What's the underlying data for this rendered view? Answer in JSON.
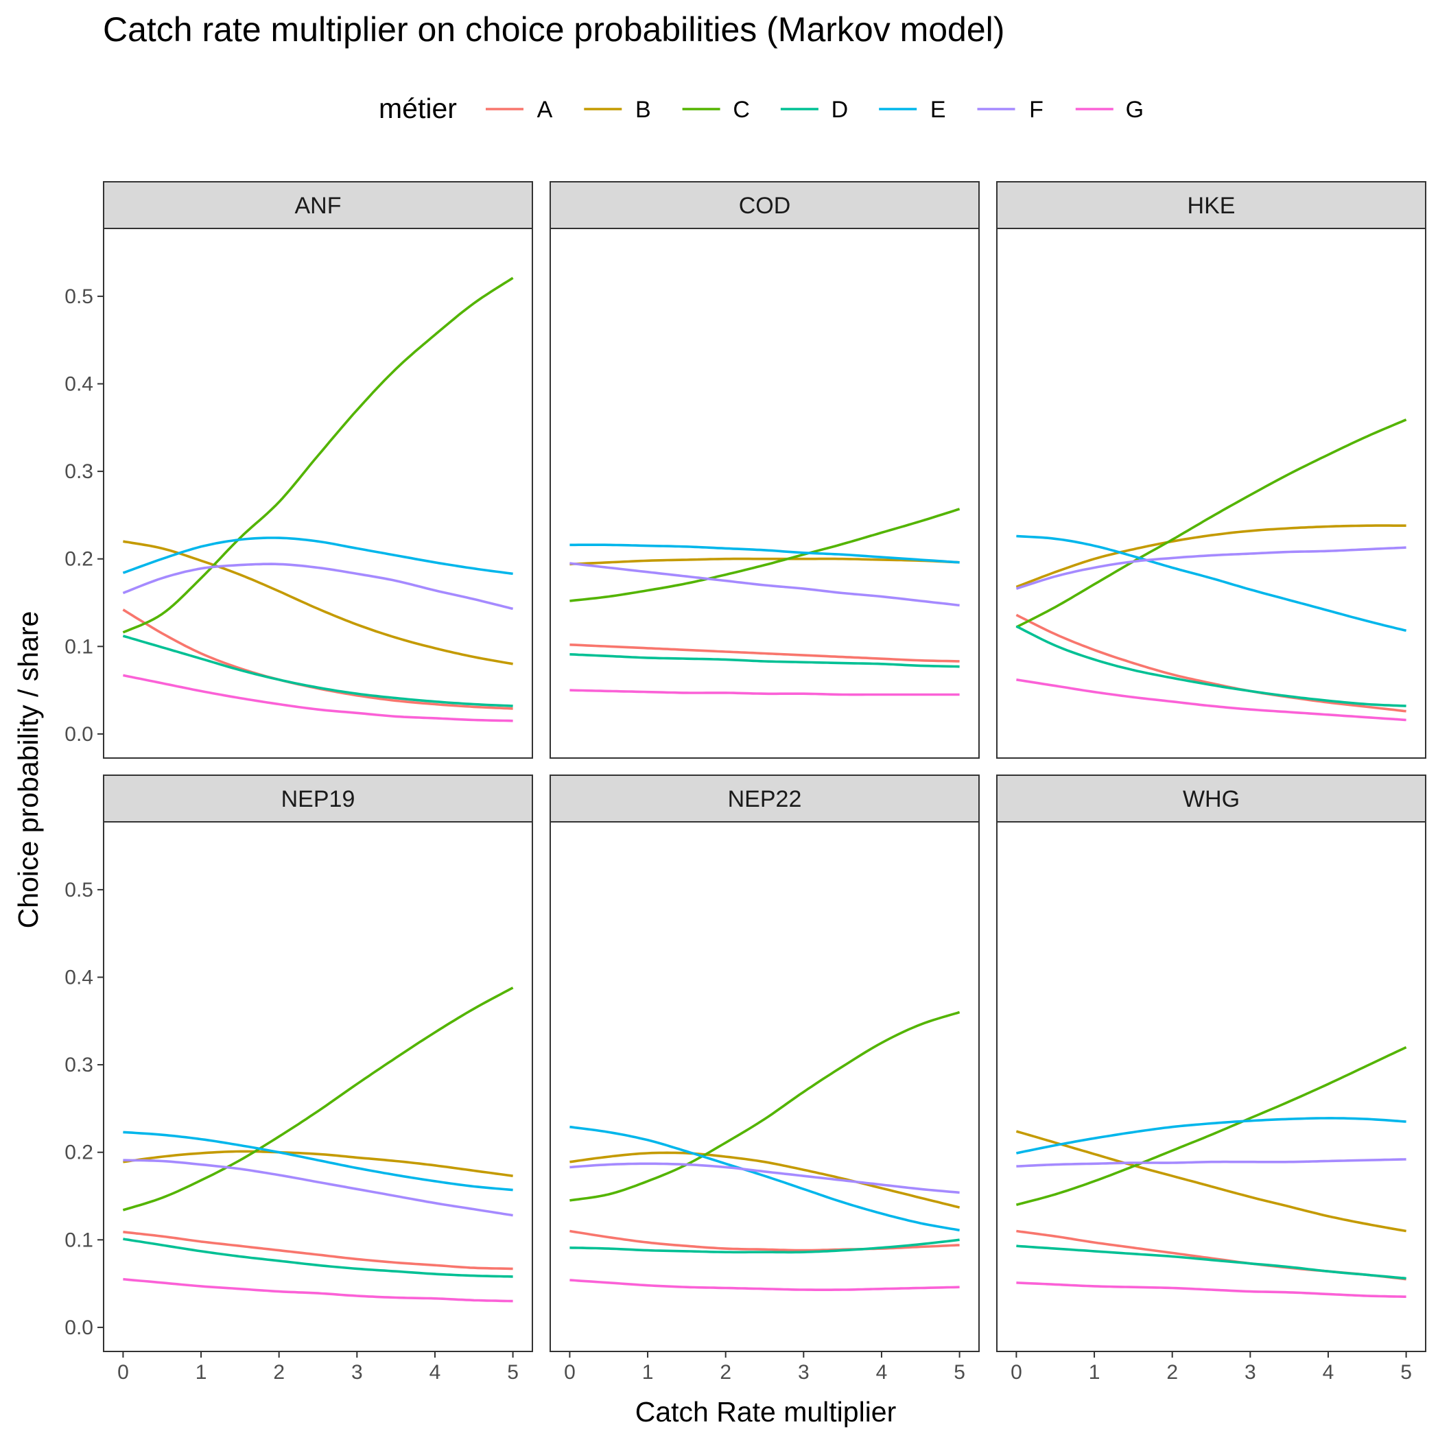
{
  "colors": {
    "A": "#F8766D",
    "B": "#C49A00",
    "C": "#53B400",
    "D": "#00C094",
    "E": "#00B6EB",
    "F": "#A58AFF",
    "G": "#FB61D7"
  },
  "chart_data": {
    "type": "line",
    "title": "Catch rate multiplier on choice probabilities (Markov model)",
    "xlabel": "Catch Rate multiplier",
    "ylabel": "Choice probability / share",
    "xlim": [
      0,
      5
    ],
    "ylim": [
      0,
      0.55
    ],
    "x_ticks": [
      "0",
      "1",
      "2",
      "3",
      "4",
      "5"
    ],
    "y_ticks": [
      "0.0",
      "0.1",
      "0.2",
      "0.3",
      "0.4",
      "0.5"
    ],
    "grid": false,
    "legend": {
      "title": "métier",
      "position": "top",
      "entries": [
        "A",
        "B",
        "C",
        "D",
        "E",
        "F",
        "G"
      ]
    },
    "x": [
      0,
      0.5,
      1,
      1.5,
      2,
      2.5,
      3,
      3.5,
      4,
      4.5,
      5
    ],
    "panels": [
      {
        "name": "ANF",
        "series": [
          {
            "name": "A",
            "values": [
              0.142,
              0.115,
              0.092,
              0.075,
              0.062,
              0.052,
              0.044,
              0.038,
              0.034,
              0.031,
              0.029
            ]
          },
          {
            "name": "B",
            "values": [
              0.22,
              0.212,
              0.198,
              0.182,
              0.163,
              0.143,
              0.125,
              0.11,
              0.098,
              0.088,
              0.08
            ]
          },
          {
            "name": "C",
            "values": [
              0.116,
              0.137,
              0.178,
              0.224,
              0.265,
              0.318,
              0.37,
              0.417,
              0.456,
              0.492,
              0.521
            ]
          },
          {
            "name": "D",
            "values": [
              0.112,
              0.099,
              0.086,
              0.073,
              0.062,
              0.053,
              0.046,
              0.041,
              0.037,
              0.034,
              0.032
            ]
          },
          {
            "name": "E",
            "values": [
              0.184,
              0.2,
              0.214,
              0.222,
              0.224,
              0.22,
              0.212,
              0.204,
              0.196,
              0.189,
              0.183
            ]
          },
          {
            "name": "F",
            "values": [
              0.161,
              0.178,
              0.189,
              0.193,
              0.194,
              0.19,
              0.183,
              0.175,
              0.164,
              0.154,
              0.143
            ]
          },
          {
            "name": "G",
            "values": [
              0.067,
              0.058,
              0.049,
              0.041,
              0.034,
              0.028,
              0.024,
              0.02,
              0.018,
              0.016,
              0.015
            ]
          }
        ]
      },
      {
        "name": "COD",
        "series": [
          {
            "name": "A",
            "values": [
              0.102,
              0.1,
              0.098,
              0.096,
              0.094,
              0.092,
              0.09,
              0.088,
              0.086,
              0.084,
              0.083
            ]
          },
          {
            "name": "B",
            "values": [
              0.194,
              0.196,
              0.198,
              0.199,
              0.2,
              0.2,
              0.2,
              0.2,
              0.199,
              0.198,
              0.196
            ]
          },
          {
            "name": "C",
            "values": [
              0.152,
              0.157,
              0.164,
              0.172,
              0.182,
              0.193,
              0.205,
              0.217,
              0.23,
              0.243,
              0.257
            ]
          },
          {
            "name": "D",
            "values": [
              0.091,
              0.089,
              0.087,
              0.086,
              0.085,
              0.083,
              0.082,
              0.081,
              0.08,
              0.078,
              0.077
            ]
          },
          {
            "name": "E",
            "values": [
              0.216,
              0.216,
              0.215,
              0.214,
              0.212,
              0.21,
              0.207,
              0.205,
              0.202,
              0.199,
              0.196
            ]
          },
          {
            "name": "F",
            "values": [
              0.195,
              0.19,
              0.185,
              0.18,
              0.175,
              0.17,
              0.166,
              0.161,
              0.157,
              0.152,
              0.147
            ]
          },
          {
            "name": "G",
            "values": [
              0.05,
              0.049,
              0.048,
              0.047,
              0.047,
              0.046,
              0.046,
              0.045,
              0.045,
              0.045,
              0.045
            ]
          }
        ]
      },
      {
        "name": "HKE",
        "series": [
          {
            "name": "A",
            "values": [
              0.136,
              0.114,
              0.096,
              0.081,
              0.068,
              0.058,
              0.049,
              0.042,
              0.036,
              0.031,
              0.026
            ]
          },
          {
            "name": "B",
            "values": [
              0.168,
              0.185,
              0.2,
              0.211,
              0.22,
              0.227,
              0.232,
              0.235,
              0.237,
              0.238,
              0.238
            ]
          },
          {
            "name": "C",
            "values": [
              0.122,
              0.145,
              0.171,
              0.197,
              0.222,
              0.248,
              0.273,
              0.297,
              0.319,
              0.34,
              0.359
            ]
          },
          {
            "name": "D",
            "values": [
              0.123,
              0.101,
              0.085,
              0.073,
              0.064,
              0.056,
              0.049,
              0.043,
              0.038,
              0.034,
              0.032
            ]
          },
          {
            "name": "E",
            "values": [
              0.226,
              0.223,
              0.215,
              0.203,
              0.19,
              0.178,
              0.165,
              0.153,
              0.141,
              0.129,
              0.118
            ]
          },
          {
            "name": "F",
            "values": [
              0.166,
              0.18,
              0.19,
              0.197,
              0.201,
              0.204,
              0.206,
              0.208,
              0.209,
              0.211,
              0.213
            ]
          },
          {
            "name": "G",
            "values": [
              0.062,
              0.055,
              0.048,
              0.042,
              0.037,
              0.032,
              0.028,
              0.025,
              0.022,
              0.019,
              0.016
            ]
          }
        ]
      },
      {
        "name": "NEP19",
        "series": [
          {
            "name": "A",
            "values": [
              0.109,
              0.104,
              0.098,
              0.093,
              0.088,
              0.083,
              0.078,
              0.074,
              0.071,
              0.068,
              0.067
            ]
          },
          {
            "name": "B",
            "values": [
              0.189,
              0.195,
              0.199,
              0.201,
              0.2,
              0.198,
              0.194,
              0.19,
              0.185,
              0.179,
              0.173
            ]
          },
          {
            "name": "C",
            "values": [
              0.134,
              0.148,
              0.168,
              0.191,
              0.218,
              0.247,
              0.278,
              0.308,
              0.337,
              0.364,
              0.388
            ]
          },
          {
            "name": "D",
            "values": [
              0.101,
              0.094,
              0.087,
              0.081,
              0.076,
              0.071,
              0.067,
              0.064,
              0.061,
              0.059,
              0.058
            ]
          },
          {
            "name": "E",
            "values": [
              0.223,
              0.22,
              0.215,
              0.208,
              0.2,
              0.191,
              0.182,
              0.174,
              0.167,
              0.161,
              0.157
            ]
          },
          {
            "name": "F",
            "values": [
              0.191,
              0.19,
              0.186,
              0.181,
              0.174,
              0.166,
              0.158,
              0.15,
              0.142,
              0.135,
              0.128
            ]
          },
          {
            "name": "G",
            "values": [
              0.055,
              0.051,
              0.047,
              0.044,
              0.041,
              0.039,
              0.036,
              0.034,
              0.033,
              0.031,
              0.03
            ]
          }
        ]
      },
      {
        "name": "NEP22",
        "series": [
          {
            "name": "A",
            "values": [
              0.11,
              0.103,
              0.097,
              0.093,
              0.09,
              0.089,
              0.088,
              0.089,
              0.09,
              0.092,
              0.094
            ]
          },
          {
            "name": "B",
            "values": [
              0.189,
              0.195,
              0.199,
              0.199,
              0.195,
              0.189,
              0.18,
              0.17,
              0.159,
              0.148,
              0.137
            ]
          },
          {
            "name": "C",
            "values": [
              0.145,
              0.152,
              0.167,
              0.186,
              0.211,
              0.238,
              0.269,
              0.298,
              0.325,
              0.346,
              0.36
            ]
          },
          {
            "name": "D",
            "values": [
              0.091,
              0.09,
              0.088,
              0.087,
              0.086,
              0.086,
              0.086,
              0.088,
              0.091,
              0.095,
              0.1
            ]
          },
          {
            "name": "E",
            "values": [
              0.229,
              0.223,
              0.214,
              0.201,
              0.187,
              0.173,
              0.158,
              0.143,
              0.13,
              0.119,
              0.111
            ]
          },
          {
            "name": "F",
            "values": [
              0.183,
              0.186,
              0.187,
              0.186,
              0.183,
              0.178,
              0.173,
              0.168,
              0.163,
              0.158,
              0.154
            ]
          },
          {
            "name": "G",
            "values": [
              0.054,
              0.051,
              0.048,
              0.046,
              0.045,
              0.044,
              0.043,
              0.043,
              0.044,
              0.045,
              0.046
            ]
          }
        ]
      },
      {
        "name": "WHG",
        "series": [
          {
            "name": "A",
            "values": [
              0.11,
              0.104,
              0.097,
              0.091,
              0.085,
              0.079,
              0.073,
              0.068,
              0.064,
              0.06,
              0.055
            ]
          },
          {
            "name": "B",
            "values": [
              0.224,
              0.211,
              0.198,
              0.185,
              0.173,
              0.161,
              0.149,
              0.138,
              0.127,
              0.118,
              0.11
            ]
          },
          {
            "name": "C",
            "values": [
              0.14,
              0.152,
              0.167,
              0.184,
              0.202,
              0.22,
              0.239,
              0.258,
              0.278,
              0.299,
              0.32
            ]
          },
          {
            "name": "D",
            "values": [
              0.093,
              0.09,
              0.087,
              0.084,
              0.081,
              0.077,
              0.073,
              0.069,
              0.064,
              0.06,
              0.056
            ]
          },
          {
            "name": "E",
            "values": [
              0.199,
              0.208,
              0.216,
              0.223,
              0.229,
              0.233,
              0.236,
              0.238,
              0.239,
              0.238,
              0.235
            ]
          },
          {
            "name": "F",
            "values": [
              0.184,
              0.186,
              0.187,
              0.188,
              0.188,
              0.189,
              0.189,
              0.189,
              0.19,
              0.191,
              0.192
            ]
          },
          {
            "name": "G",
            "values": [
              0.051,
              0.049,
              0.047,
              0.046,
              0.045,
              0.043,
              0.041,
              0.04,
              0.038,
              0.036,
              0.035
            ]
          }
        ]
      }
    ]
  }
}
